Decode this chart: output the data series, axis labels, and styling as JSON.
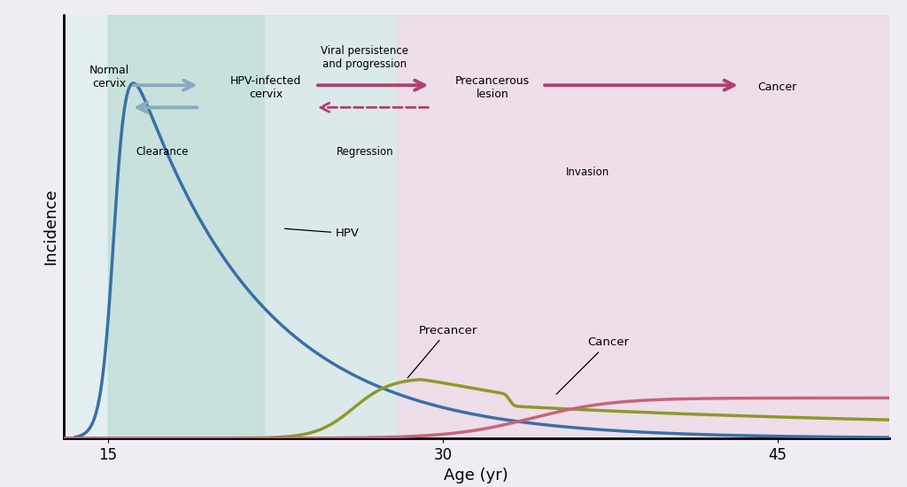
{
  "bg_outer_color": "#f0ecf4",
  "region0_color": "#e8f4f0",
  "region1_color": "#c8e8e0",
  "region2_color": "#d8eae6",
  "region3_color": "#f0dce8",
  "xlabel": "Age (yr)",
  "ylabel": "Incidence",
  "xticks": [
    15,
    30,
    45
  ],
  "xmin": 13,
  "xmax": 50,
  "ymin": 0,
  "ymax": 1.0,
  "hpv_color": "#3a6fa8",
  "precancer_color": "#8b9a2a",
  "cancer_color": "#c8637a",
  "arrow_blue_color": "#8aaabf",
  "arrow_pink_color": "#b04070"
}
